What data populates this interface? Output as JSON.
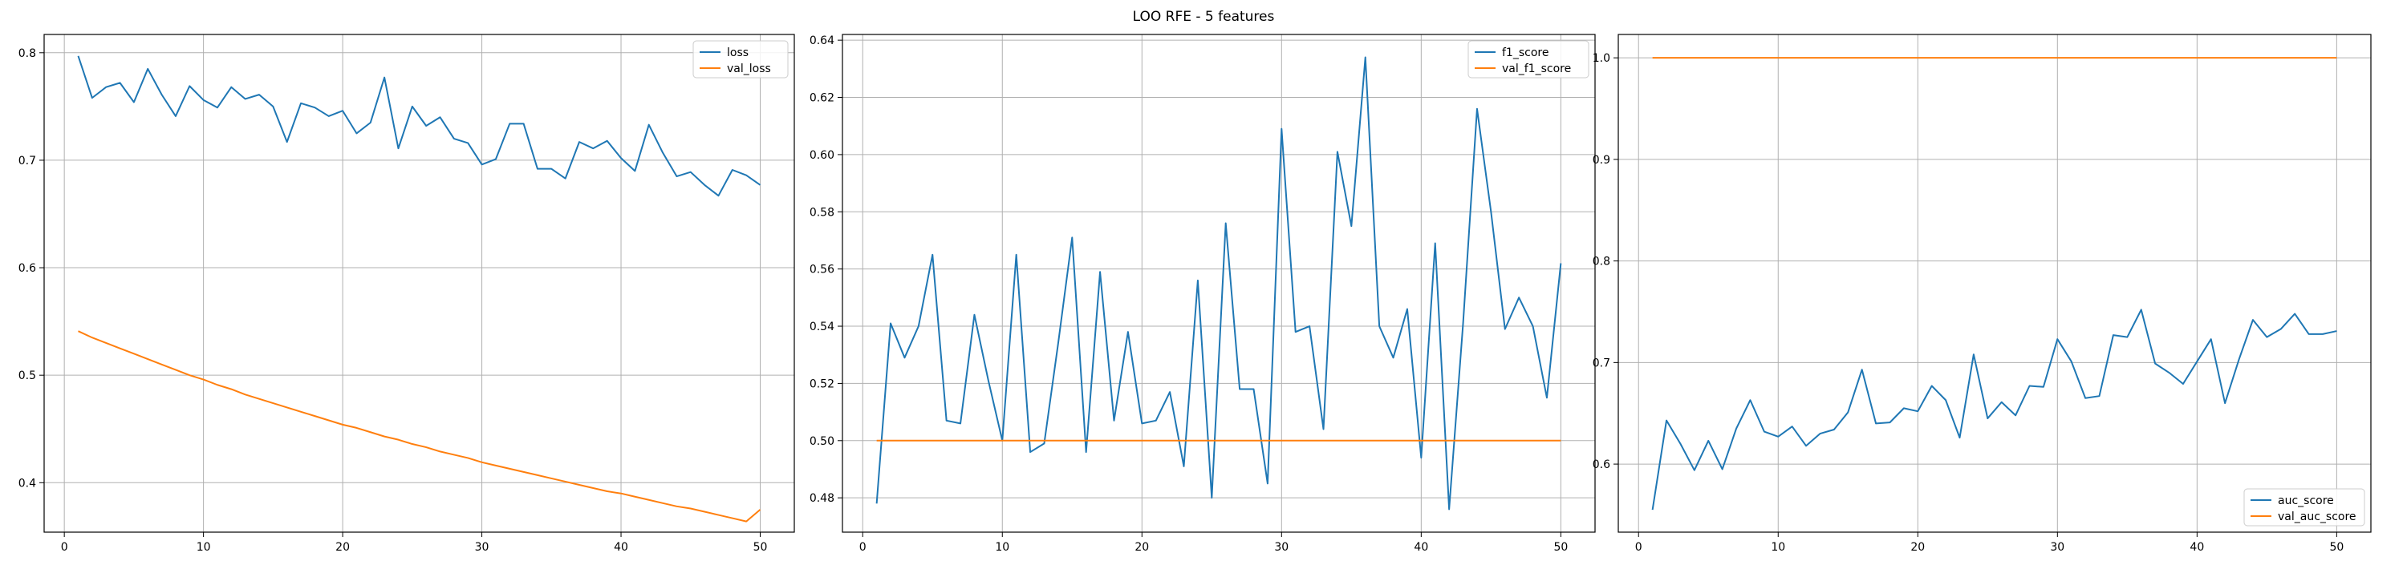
{
  "figure": {
    "title": "LOO RFE - 5 features"
  },
  "colors": {
    "blue": "#1f77b4",
    "orange": "#ff7f0e",
    "grid": "#b0b0b0",
    "axis": "#000000"
  },
  "chart_data": [
    {
      "type": "line",
      "title": "",
      "xlabel": "",
      "ylabel": "",
      "xlim": [
        -1.45,
        52.45
      ],
      "ylim": [
        0.354,
        0.817
      ],
      "xticks": [
        0,
        10,
        20,
        30,
        40,
        50
      ],
      "yticks": [
        0.4,
        0.5,
        0.6,
        0.7,
        0.8
      ],
      "ytick_labels": [
        "0.4",
        "0.5",
        "0.6",
        "0.7",
        "0.8"
      ],
      "grid": true,
      "legend_position": "top-right",
      "x": [
        1,
        2,
        3,
        4,
        5,
        6,
        7,
        8,
        9,
        10,
        11,
        12,
        13,
        14,
        15,
        16,
        17,
        18,
        19,
        20,
        21,
        22,
        23,
        24,
        25,
        26,
        27,
        28,
        29,
        30,
        31,
        32,
        33,
        34,
        35,
        36,
        37,
        38,
        39,
        40,
        41,
        42,
        43,
        44,
        45,
        46,
        47,
        48,
        49,
        50
      ],
      "series": [
        {
          "name": "loss",
          "color": "#1f77b4",
          "values": [
            0.797,
            0.758,
            0.768,
            0.772,
            0.754,
            0.785,
            0.761,
            0.741,
            0.769,
            0.756,
            0.749,
            0.768,
            0.757,
            0.761,
            0.75,
            0.717,
            0.753,
            0.749,
            0.741,
            0.746,
            0.725,
            0.735,
            0.777,
            0.711,
            0.75,
            0.732,
            0.74,
            0.72,
            0.716,
            0.696,
            0.701,
            0.734,
            0.734,
            0.692,
            0.692,
            0.683,
            0.717,
            0.711,
            0.718,
            0.702,
            0.69,
            0.733,
            0.707,
            0.685,
            0.689,
            0.677,
            0.667,
            0.691,
            0.686,
            0.677
          ]
        },
        {
          "name": "val_loss",
          "color": "#ff7f0e",
          "values": [
            0.541,
            0.535,
            0.53,
            0.525,
            0.52,
            0.515,
            0.51,
            0.505,
            0.5,
            0.496,
            0.491,
            0.487,
            0.482,
            0.478,
            0.474,
            0.47,
            0.466,
            0.462,
            0.458,
            0.454,
            0.451,
            0.447,
            0.443,
            0.44,
            0.436,
            0.433,
            0.429,
            0.426,
            0.423,
            0.419,
            0.416,
            0.413,
            0.41,
            0.407,
            0.404,
            0.401,
            0.398,
            0.395,
            0.392,
            0.39,
            0.387,
            0.384,
            0.381,
            0.378,
            0.376,
            0.373,
            0.37,
            0.367,
            0.364,
            0.375
          ]
        }
      ]
    },
    {
      "type": "line",
      "title": "",
      "xlabel": "",
      "ylabel": "",
      "xlim": [
        -1.45,
        52.45
      ],
      "ylim": [
        0.468,
        0.642
      ],
      "xticks": [
        0,
        10,
        20,
        30,
        40,
        50
      ],
      "yticks": [
        0.48,
        0.5,
        0.52,
        0.54,
        0.56,
        0.58,
        0.6,
        0.62,
        0.64
      ],
      "ytick_labels": [
        "0.48",
        "0.50",
        "0.52",
        "0.54",
        "0.56",
        "0.58",
        "0.60",
        "0.62",
        "0.64"
      ],
      "grid": true,
      "legend_position": "top-right",
      "x": [
        1,
        2,
        3,
        4,
        5,
        6,
        7,
        8,
        9,
        10,
        11,
        12,
        13,
        14,
        15,
        16,
        17,
        18,
        19,
        20,
        21,
        22,
        23,
        24,
        25,
        26,
        27,
        28,
        29,
        30,
        31,
        32,
        33,
        34,
        35,
        36,
        37,
        38,
        39,
        40,
        41,
        42,
        43,
        44,
        45,
        46,
        47,
        48,
        49,
        50
      ],
      "series": [
        {
          "name": "f1_score",
          "color": "#1f77b4",
          "values": [
            0.478,
            0.541,
            0.529,
            0.54,
            0.565,
            0.507,
            0.506,
            0.544,
            0.521,
            0.5,
            0.565,
            0.496,
            0.499,
            0.534,
            0.571,
            0.496,
            0.559,
            0.507,
            0.538,
            0.506,
            0.507,
            0.517,
            0.491,
            0.556,
            0.48,
            0.576,
            0.518,
            0.518,
            0.485,
            0.609,
            0.538,
            0.54,
            0.504,
            0.601,
            0.575,
            0.634,
            0.54,
            0.529,
            0.546,
            0.494,
            0.569,
            0.476,
            0.541,
            0.616,
            0.58,
            0.539,
            0.55,
            0.54,
            0.515,
            0.562
          ]
        },
        {
          "name": "val_f1_score",
          "color": "#ff7f0e",
          "values": [
            0.5,
            0.5,
            0.5,
            0.5,
            0.5,
            0.5,
            0.5,
            0.5,
            0.5,
            0.5,
            0.5,
            0.5,
            0.5,
            0.5,
            0.5,
            0.5,
            0.5,
            0.5,
            0.5,
            0.5,
            0.5,
            0.5,
            0.5,
            0.5,
            0.5,
            0.5,
            0.5,
            0.5,
            0.5,
            0.5,
            0.5,
            0.5,
            0.5,
            0.5,
            0.5,
            0.5,
            0.5,
            0.5,
            0.5,
            0.5,
            0.5,
            0.5,
            0.5,
            0.5,
            0.5,
            0.5,
            0.5,
            0.5,
            0.5,
            0.5
          ]
        }
      ]
    },
    {
      "type": "line",
      "title": "",
      "xlabel": "",
      "ylabel": "",
      "xlim": [
        -1.45,
        52.45
      ],
      "ylim": [
        0.533,
        1.023
      ],
      "xticks": [
        0,
        10,
        20,
        30,
        40,
        50
      ],
      "yticks": [
        0.6,
        0.7,
        0.8,
        0.9,
        1.0
      ],
      "ytick_labels": [
        "0.6",
        "0.7",
        "0.8",
        "0.9",
        "1.0"
      ],
      "grid": true,
      "legend_position": "bottom-right",
      "x": [
        1,
        2,
        3,
        4,
        5,
        6,
        7,
        8,
        9,
        10,
        11,
        12,
        13,
        14,
        15,
        16,
        17,
        18,
        19,
        20,
        21,
        22,
        23,
        24,
        25,
        26,
        27,
        28,
        29,
        30,
        31,
        32,
        33,
        34,
        35,
        36,
        37,
        38,
        39,
        40,
        41,
        42,
        43,
        44,
        45,
        46,
        47,
        48,
        49,
        50
      ],
      "series": [
        {
          "name": "auc_score",
          "color": "#1f77b4",
          "values": [
            0.555,
            0.643,
            0.62,
            0.594,
            0.623,
            0.595,
            0.635,
            0.663,
            0.632,
            0.627,
            0.637,
            0.618,
            0.63,
            0.634,
            0.651,
            0.693,
            0.64,
            0.641,
            0.655,
            0.652,
            0.677,
            0.663,
            0.626,
            0.708,
            0.645,
            0.661,
            0.648,
            0.677,
            0.676,
            0.723,
            0.701,
            0.665,
            0.667,
            0.727,
            0.725,
            0.752,
            0.699,
            0.69,
            0.679,
            0.701,
            0.723,
            0.66,
            0.703,
            0.742,
            0.725,
            0.733,
            0.748,
            0.728,
            0.728,
            0.731
          ]
        },
        {
          "name": "val_auc_score",
          "color": "#ff7f0e",
          "values": [
            1.0,
            1.0,
            1.0,
            1.0,
            1.0,
            1.0,
            1.0,
            1.0,
            1.0,
            1.0,
            1.0,
            1.0,
            1.0,
            1.0,
            1.0,
            1.0,
            1.0,
            1.0,
            1.0,
            1.0,
            1.0,
            1.0,
            1.0,
            1.0,
            1.0,
            1.0,
            1.0,
            1.0,
            1.0,
            1.0,
            1.0,
            1.0,
            1.0,
            1.0,
            1.0,
            1.0,
            1.0,
            1.0,
            1.0,
            1.0,
            1.0,
            1.0,
            1.0,
            1.0,
            1.0,
            1.0,
            1.0,
            1.0,
            1.0,
            1.0
          ]
        }
      ]
    }
  ]
}
